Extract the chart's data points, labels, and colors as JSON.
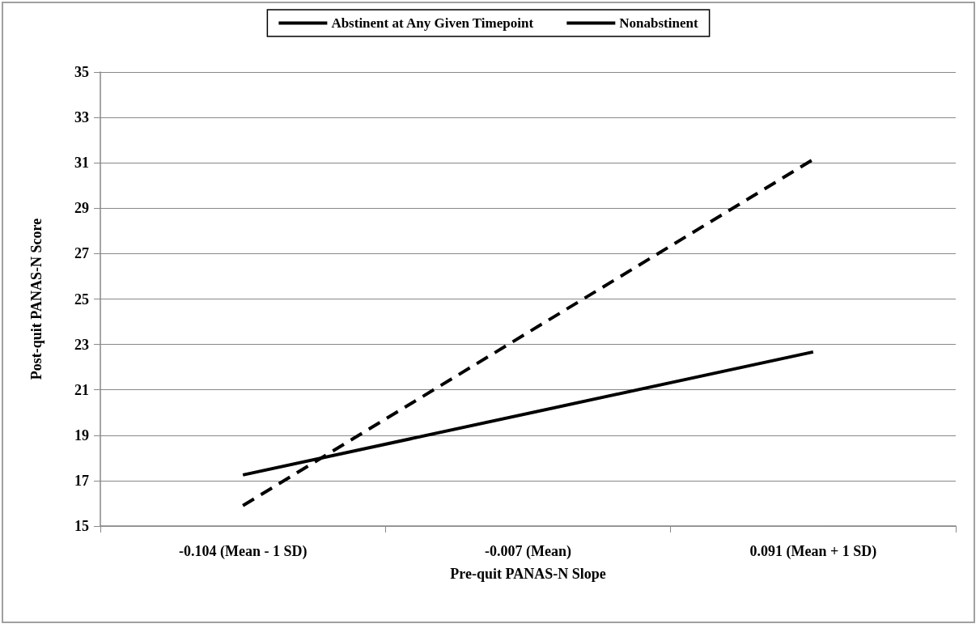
{
  "chart_data": {
    "type": "line",
    "xlabel": "Pre-quit PANAS-N Slope",
    "ylabel": "Post-quit PANAS-N Score",
    "categories": [
      "-0.104 (Mean - 1 SD)",
      "-0.007 (Mean)",
      "0.091 (Mean + 1 SD)"
    ],
    "series": [
      {
        "name": "Abstinent at Any Given Timepoint",
        "color": "#000000",
        "line_style": "solid",
        "values": [
          17.25,
          null,
          22.67
        ]
      },
      {
        "name": "Nonabstinent",
        "color": "#000000",
        "line_style": "dashed",
        "values": [
          15.9,
          null,
          31.15
        ]
      }
    ],
    "ylim": [
      15,
      35
    ],
    "yticks": [
      15,
      17,
      19,
      21,
      23,
      25,
      27,
      29,
      31,
      33,
      35
    ],
    "grid": "y",
    "legend": "top",
    "marker": "none"
  }
}
